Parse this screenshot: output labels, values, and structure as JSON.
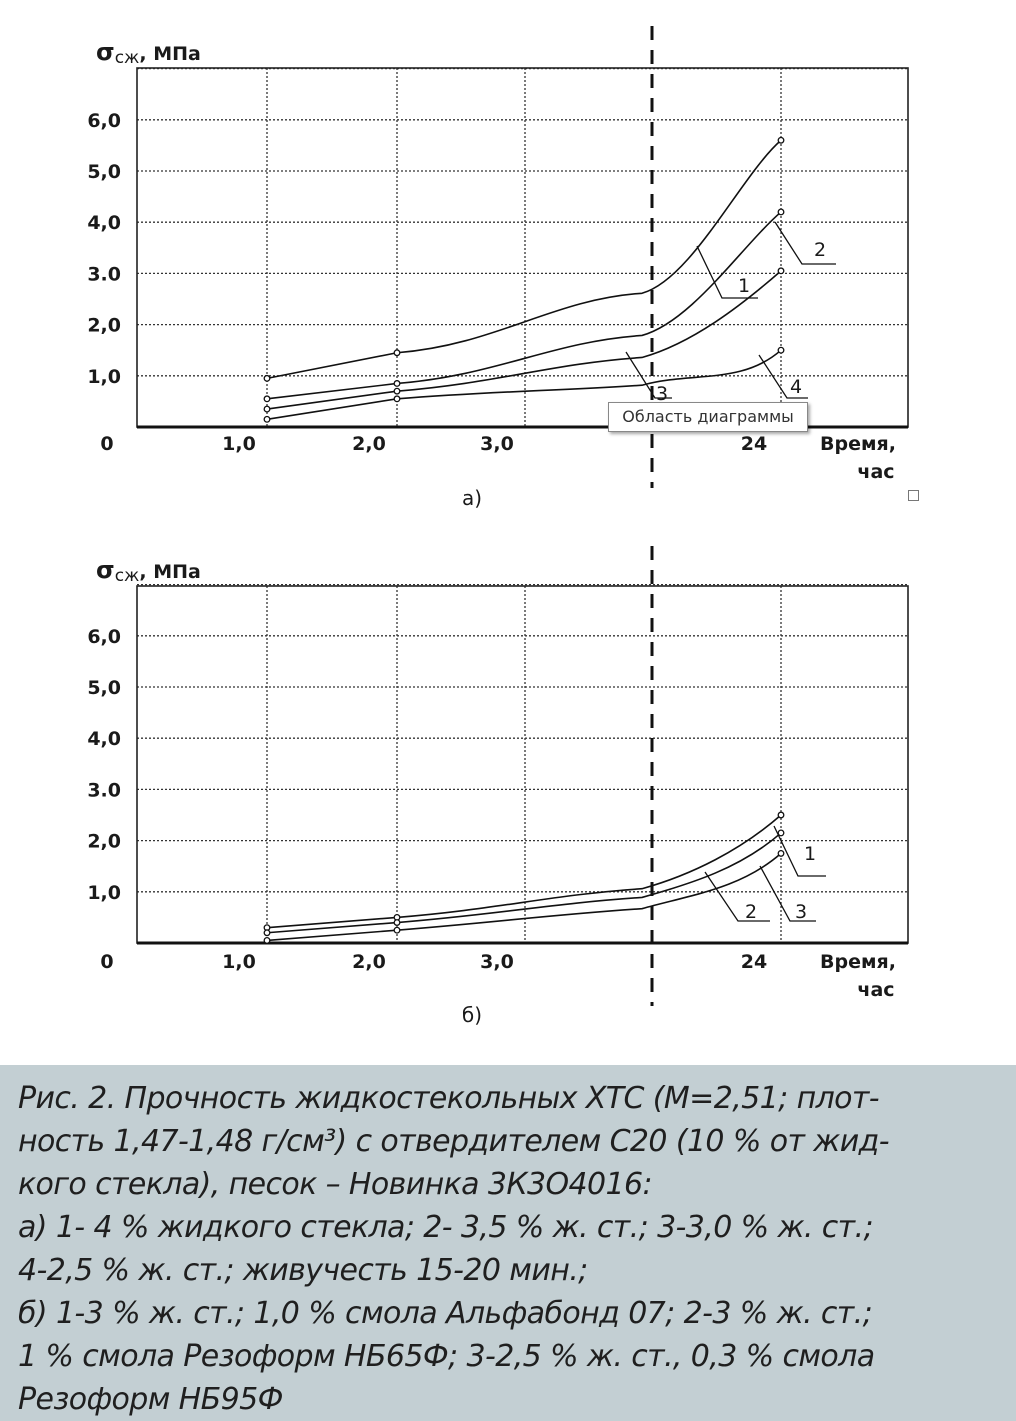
{
  "chart_data": [
    {
      "panel": "а)",
      "type": "line",
      "ylabel_main": "σ",
      "ylabel_sub": "сж",
      "ylabel_unit": ", МПа",
      "xlabel_line1": "Время,",
      "xlabel_line2": "час",
      "origin_label": "0",
      "x_categories": [
        "1,0",
        "2,0",
        "3,0",
        "",
        "24"
      ],
      "y_ticks": [
        "1,0",
        "2,0",
        "3.0",
        "4,0",
        "5,0",
        "6,0"
      ],
      "ylim": [
        0,
        6.0
      ],
      "grid": true,
      "tooltip": "Область диаграммы",
      "series": [
        {
          "name": "1",
          "label_y": 2.8,
          "points": [
            [
              1.0,
              0.55
            ],
            [
              2.0,
              0.85
            ],
            [
              24,
              4.2
            ]
          ]
        },
        {
          "name": "2",
          "label_y": 3.2,
          "points": [
            [
              1.0,
              0.95
            ],
            [
              2.0,
              1.45
            ],
            [
              24,
              5.6
            ]
          ]
        },
        {
          "name": "3",
          "label_y": 0.6,
          "points": [
            [
              1.0,
              0.35
            ],
            [
              2.0,
              0.7
            ],
            [
              24,
              3.05
            ]
          ]
        },
        {
          "name": "4",
          "label_y": 0.75,
          "points": [
            [
              1.0,
              0.15
            ],
            [
              2.0,
              0.55
            ],
            [
              24,
              1.5
            ]
          ]
        }
      ]
    },
    {
      "panel": "б)",
      "type": "line",
      "ylabel_main": "σ",
      "ylabel_sub": "сж",
      "ylabel_unit": ", МПа",
      "xlabel_line1": "Время,",
      "xlabel_line2": "час",
      "origin_label": "0",
      "x_categories": [
        "1,0",
        "2,0",
        "3,0",
        "",
        "24"
      ],
      "y_ticks": [
        "1,0",
        "2,0",
        "3.0",
        "4,0",
        "5,0",
        "6,0"
      ],
      "ylim": [
        0,
        6.0
      ],
      "grid": true,
      "series": [
        {
          "name": "1",
          "label_y": 1.8,
          "points": [
            [
              1.0,
              0.3
            ],
            [
              2.0,
              0.5
            ],
            [
              24,
              2.5
            ]
          ]
        },
        {
          "name": "2",
          "label_y": 0.55,
          "points": [
            [
              1.0,
              0.2
            ],
            [
              2.0,
              0.4
            ],
            [
              24,
              2.15
            ]
          ]
        },
        {
          "name": "3",
          "label_y": 0.55,
          "points": [
            [
              1.0,
              0.05
            ],
            [
              2.0,
              0.25
            ],
            [
              24,
              1.75
            ]
          ]
        }
      ]
    }
  ],
  "caption": [
    "Рис. 2. Прочность жидкостекольных ХТС (М=2,51; плот-",
    "ность 1,47-1,48 г/см³) с отвердителем С20 (10 % от жид-",
    "кого стекла), песок – Новинка 3К3О4016:",
    "а) 1- 4 % жидкого стекла; 2- 3,5 % ж. ст.; 3-3,0 % ж. ст.;",
    "4-2,5 % ж. ст.; живучесть 15-20 мин.;",
    "б) 1-3 % ж. ст.; 1,0 % смола Альфабонд 07; 2-3 % ж. ст.;",
    "1 % смола Резоформ НБ65Ф; 3-2,5 % ж. ст., 0,3 % смола",
    "Резоформ НБ95Ф"
  ]
}
